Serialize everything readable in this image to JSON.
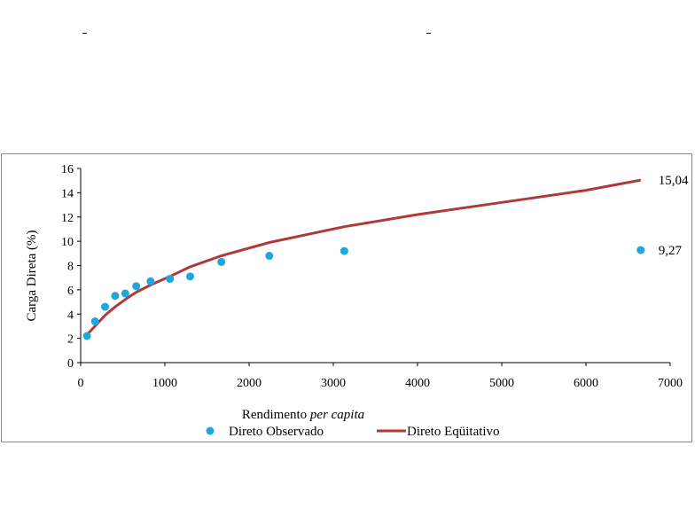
{
  "chart_data": {
    "type": "scatter",
    "title": "",
    "xlabel_prefix": "Rendimento ",
    "xlabel_italic": "per capita",
    "ylabel": "Carga Direta (%)",
    "xlim": [
      0,
      7000
    ],
    "ylim": [
      0,
      16
    ],
    "xticks": [
      0,
      1000,
      2000,
      3000,
      4000,
      5000,
      6000,
      7000
    ],
    "yticks": [
      0,
      2,
      4,
      6,
      8,
      10,
      12,
      14,
      16
    ],
    "grid": false,
    "legend_position": "bottom",
    "series": [
      {
        "name": "Direto Observado",
        "kind": "scatter",
        "color": "#1fa7dc",
        "points": [
          [
            75,
            2.2
          ],
          [
            170,
            3.4
          ],
          [
            290,
            4.6
          ],
          [
            410,
            5.5
          ],
          [
            530,
            5.7
          ],
          [
            660,
            6.3
          ],
          [
            830,
            6.7
          ],
          [
            1060,
            6.9
          ],
          [
            1300,
            7.1
          ],
          [
            1670,
            8.3
          ],
          [
            2240,
            8.8
          ],
          [
            3130,
            9.2
          ],
          [
            6650,
            9.27
          ]
        ]
      },
      {
        "name": "Direto Eqüitativo",
        "kind": "line",
        "color": "#b03a3a",
        "points": [
          [
            75,
            2.3
          ],
          [
            170,
            3.0
          ],
          [
            290,
            3.9
          ],
          [
            410,
            4.6
          ],
          [
            530,
            5.2
          ],
          [
            660,
            5.8
          ],
          [
            830,
            6.4
          ],
          [
            1060,
            7.1
          ],
          [
            1300,
            7.9
          ],
          [
            1670,
            8.8
          ],
          [
            2240,
            9.9
          ],
          [
            3130,
            11.2
          ],
          [
            4000,
            12.2
          ],
          [
            5000,
            13.2
          ],
          [
            6000,
            14.2
          ],
          [
            6650,
            15.04
          ]
        ]
      }
    ],
    "annotations": [
      {
        "text": "15,04",
        "x": 6650,
        "y": 15.04
      },
      {
        "text": "9,27",
        "x": 6650,
        "y": 9.27
      }
    ]
  }
}
